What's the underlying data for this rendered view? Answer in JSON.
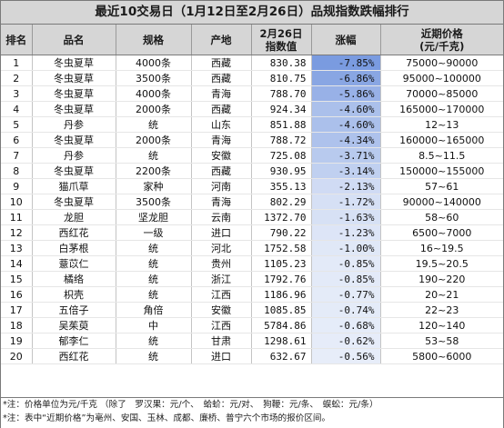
{
  "title": "最近10交易日（1月12日至2月26日）品规指数跌幅排行",
  "header": {
    "rank": "排名",
    "name": "品名",
    "spec": "规格",
    "origin": "产地",
    "index_line1": "2月26日",
    "index_line2": "指数值",
    "change": "涨幅",
    "recent_line1": "近期价格",
    "recent_line2": "(元/千克)"
  },
  "rows": [
    {
      "rank": "1",
      "name": "冬虫夏草",
      "spec": "4000条",
      "origin": "西藏",
      "index": "830.38",
      "change": "-7.85%",
      "change_value": -7.85,
      "recent": "75000~90000"
    },
    {
      "rank": "2",
      "name": "冬虫夏草",
      "spec": "3500条",
      "origin": "西藏",
      "index": "810.75",
      "change": "-6.86%",
      "change_value": -6.86,
      "recent": "95000~100000"
    },
    {
      "rank": "3",
      "name": "冬虫夏草",
      "spec": "4000条",
      "origin": "青海",
      "index": "788.70",
      "change": "-5.86%",
      "change_value": -5.86,
      "recent": "70000~85000"
    },
    {
      "rank": "4",
      "name": "冬虫夏草",
      "spec": "2000条",
      "origin": "西藏",
      "index": "924.34",
      "change": "-4.60%",
      "change_value": -4.6,
      "recent": "165000~170000"
    },
    {
      "rank": "5",
      "name": "丹参",
      "spec": "统",
      "origin": "山东",
      "index": "851.88",
      "change": "-4.60%",
      "change_value": -4.6,
      "recent": "12~13"
    },
    {
      "rank": "6",
      "name": "冬虫夏草",
      "spec": "2000条",
      "origin": "青海",
      "index": "788.72",
      "change": "-4.34%",
      "change_value": -4.34,
      "recent": "160000~165000"
    },
    {
      "rank": "7",
      "name": "丹参",
      "spec": "统",
      "origin": "安徽",
      "index": "725.08",
      "change": "-3.71%",
      "change_value": -3.71,
      "recent": "8.5~11.5"
    },
    {
      "rank": "8",
      "name": "冬虫夏草",
      "spec": "2200条",
      "origin": "西藏",
      "index": "930.95",
      "change": "-3.14%",
      "change_value": -3.14,
      "recent": "150000~155000"
    },
    {
      "rank": "9",
      "name": "猫爪草",
      "spec": "家种",
      "origin": "河南",
      "index": "355.13",
      "change": "-2.13%",
      "change_value": -2.13,
      "recent": "57~61"
    },
    {
      "rank": "10",
      "name": "冬虫夏草",
      "spec": "3500条",
      "origin": "青海",
      "index": "802.29",
      "change": "-1.72%",
      "change_value": -1.72,
      "recent": "90000~140000"
    },
    {
      "rank": "11",
      "name": "龙胆",
      "spec": "坚龙胆",
      "origin": "云南",
      "index": "1372.70",
      "change": "-1.63%",
      "change_value": -1.63,
      "recent": "58~60"
    },
    {
      "rank": "12",
      "name": "西红花",
      "spec": "一级",
      "origin": "进口",
      "index": "790.22",
      "change": "-1.23%",
      "change_value": -1.23,
      "recent": "6500~7000"
    },
    {
      "rank": "13",
      "name": "白茅根",
      "spec": "统",
      "origin": "河北",
      "index": "1752.58",
      "change": "-1.00%",
      "change_value": -1.0,
      "recent": "16~19.5"
    },
    {
      "rank": "14",
      "name": "薏苡仁",
      "spec": "统",
      "origin": "贵州",
      "index": "1105.23",
      "change": "-0.85%",
      "change_value": -0.85,
      "recent": "19.5~20.5"
    },
    {
      "rank": "15",
      "name": "橘络",
      "spec": "统",
      "origin": "浙江",
      "index": "1792.76",
      "change": "-0.85%",
      "change_value": -0.85,
      "recent": "190~220"
    },
    {
      "rank": "16",
      "name": "枳壳",
      "spec": "统",
      "origin": "江西",
      "index": "1186.96",
      "change": "-0.77%",
      "change_value": -0.77,
      "recent": "20~21"
    },
    {
      "rank": "17",
      "name": "五倍子",
      "spec": "角倍",
      "origin": "安徽",
      "index": "1085.85",
      "change": "-0.74%",
      "change_value": -0.74,
      "recent": "22~23"
    },
    {
      "rank": "18",
      "name": "吴茱萸",
      "spec": "中",
      "origin": "江西",
      "index": "5784.86",
      "change": "-0.68%",
      "change_value": -0.68,
      "recent": "120~140"
    },
    {
      "rank": "19",
      "name": "郁李仁",
      "spec": "统",
      "origin": "甘肃",
      "index": "1298.61",
      "change": "-0.62%",
      "change_value": -0.62,
      "recent": "53~58"
    },
    {
      "rank": "20",
      "name": "西红花",
      "spec": "统",
      "origin": "进口",
      "index": "632.67",
      "change": "-0.56%",
      "change_value": -0.56,
      "recent": "5800~6000"
    }
  ],
  "notes": [
    "*注：价格单位为元/千克 （除了　罗汉果：元/个、　蛤蚧：元/对、　狗鞭：元/条、　蜈蚣：元/条）",
    "*注：表中“近期价格”为亳州、安国、玉林、成都、廉桥、普宁六个市场的报价区间。"
  ],
  "colors": {
    "header_bg": "#d6d6d6",
    "change_gradient_dark": "#7a9be0",
    "change_gradient_light": "#e7edf9"
  }
}
